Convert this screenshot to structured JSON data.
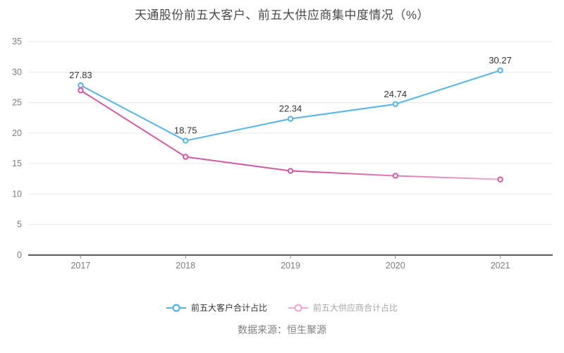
{
  "title": "天通股份前五大客户、前五大供应商集中度情况（%）",
  "source": "数据来源：恒生聚源",
  "legend": {
    "items": [
      {
        "label": "前五大客户合计占比",
        "icon_color": "#55b4ec",
        "text_color": "#333333"
      },
      {
        "label": "前五大供应商合计占比",
        "icon_color": "#f0abd2",
        "text_color": "#a6a6a6"
      }
    ]
  },
  "chart_data": {
    "type": "line",
    "title": "天通股份前五大客户、前五大供应商集中度情况（%）",
    "categories": [
      "2017",
      "2018",
      "2019",
      "2020",
      "2021"
    ],
    "series": [
      {
        "name": "前五大客户合计占比",
        "values": [
          27.83,
          18.75,
          22.34,
          24.74,
          30.27
        ],
        "labels": [
          "27.83",
          "18.75",
          "22.34",
          "24.74",
          "30.27"
        ],
        "color": "#55b4ec",
        "show_labels": true
      },
      {
        "name": "前五大供应商合计占比",
        "values": [
          27.0,
          16.1,
          13.8,
          13.0,
          12.4
        ],
        "color": "#d4589e",
        "color_fade_end": "#eda7d0",
        "show_labels": false
      }
    ],
    "xlabel": "",
    "ylabel": "",
    "ylim": [
      0,
      35
    ],
    "ytick_step": 5,
    "grid": true,
    "legend_position": "bottom",
    "colors": {
      "axis_line": "#595959",
      "grid_line": "#e6e6f1",
      "tick_mark": "#8c8c8c",
      "tick_label": "#7d7d7d",
      "data_label": "#333333",
      "background": "#ffffff"
    }
  }
}
